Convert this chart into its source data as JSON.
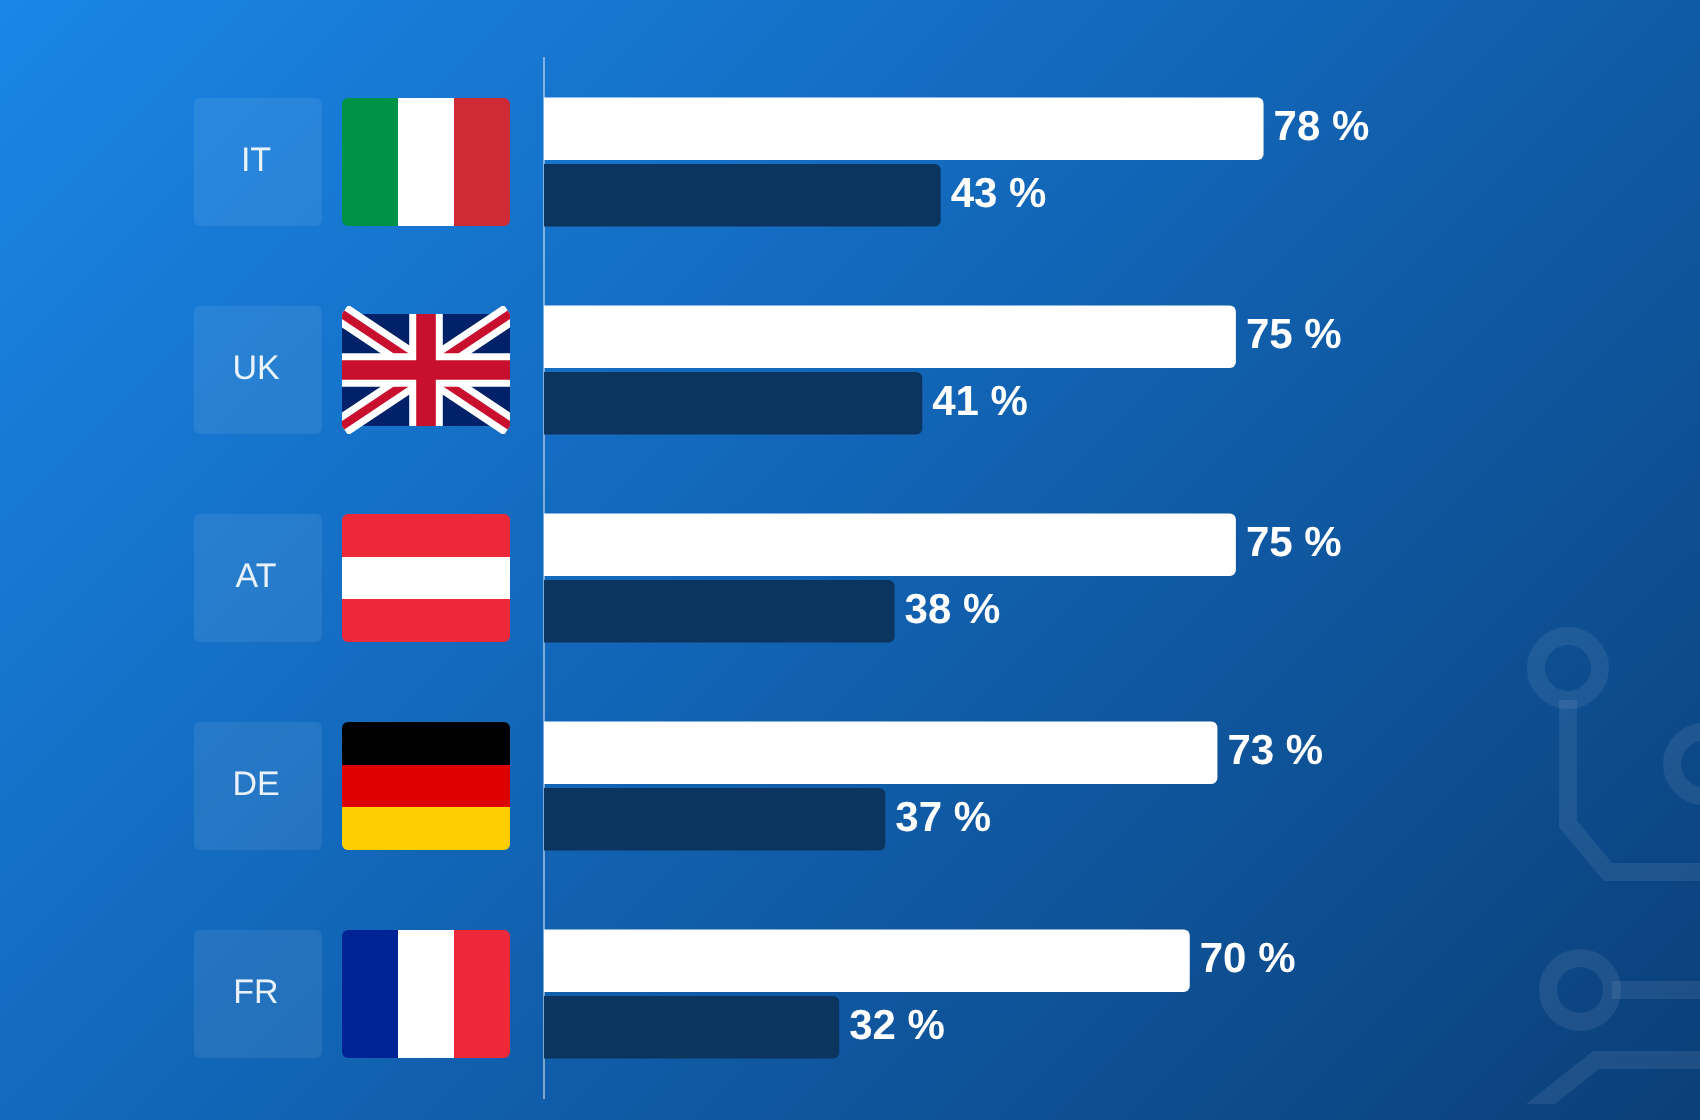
{
  "chart_data": {
    "type": "bar",
    "orientation": "horizontal",
    "categories": [
      "IT",
      "UK",
      "AT",
      "DE",
      "FR"
    ],
    "series": [
      {
        "color": "#ffffff",
        "values": [
          78,
          75,
          75,
          73,
          70
        ],
        "value_labels": [
          "78 %",
          "75 %",
          "75 %",
          "73 %",
          "70 %"
        ]
      },
      {
        "color": "#0b355f",
        "values": [
          43,
          41,
          38,
          37,
          32
        ],
        "value_labels": [
          "43 %",
          "41 %",
          "38 %",
          "37 %",
          "32 %"
        ]
      }
    ],
    "grid": false,
    "legend": false
  }
}
